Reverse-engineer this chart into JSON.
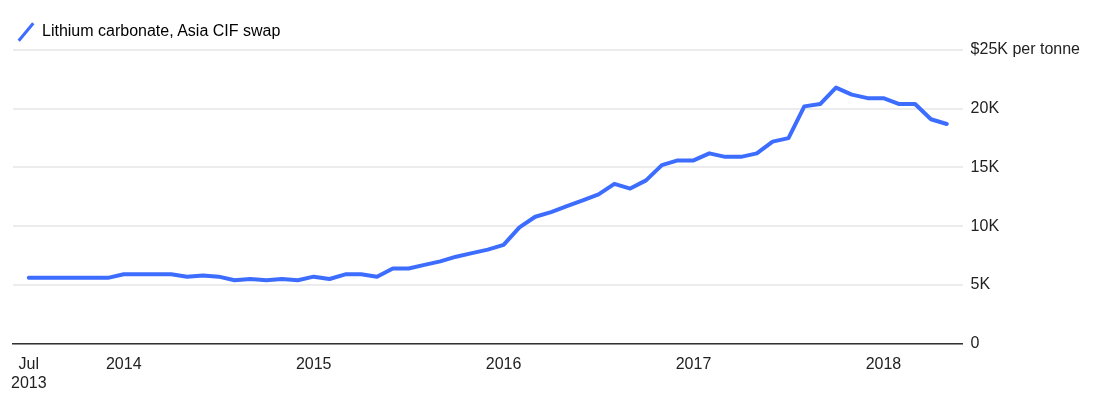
{
  "chart_data": {
    "type": "line",
    "x": [
      "2013-07",
      "2013-08",
      "2013-09",
      "2013-10",
      "2013-11",
      "2013-12",
      "2014-01",
      "2014-02",
      "2014-03",
      "2014-04",
      "2014-05",
      "2014-06",
      "2014-07",
      "2014-08",
      "2014-09",
      "2014-10",
      "2014-11",
      "2014-12",
      "2015-01",
      "2015-02",
      "2015-03",
      "2015-04",
      "2015-05",
      "2015-06",
      "2015-07",
      "2015-08",
      "2015-09",
      "2015-10",
      "2015-11",
      "2015-12",
      "2016-01",
      "2016-02",
      "2016-03",
      "2016-04",
      "2016-05",
      "2016-06",
      "2016-07",
      "2016-08",
      "2016-09",
      "2016-10",
      "2016-11",
      "2016-12",
      "2017-01",
      "2017-02",
      "2017-03",
      "2017-04",
      "2017-05",
      "2017-06",
      "2017-07",
      "2017-08",
      "2017-09",
      "2017-10",
      "2017-11",
      "2017-12",
      "2018-01",
      "2018-02",
      "2018-03",
      "2018-04",
      "2018-05"
    ],
    "series": [
      {
        "name": "Lithium carbonate, Asia CIF swap",
        "color": "#3d6dff",
        "values": [
          5600,
          5600,
          5600,
          5600,
          5600,
          5600,
          5900,
          5900,
          5900,
          5900,
          5700,
          5800,
          5700,
          5400,
          5500,
          5400,
          5500,
          5400,
          5700,
          5500,
          5900,
          5900,
          5700,
          6400,
          6400,
          6700,
          7000,
          7400,
          7700,
          8000,
          8400,
          9900,
          10800,
          11200,
          11700,
          12200,
          12700,
          13600,
          13200,
          13900,
          15200,
          15600,
          15600,
          16200,
          15900,
          15900,
          16200,
          17200,
          17500,
          20200,
          20400,
          21800,
          21200,
          20900,
          20900,
          20400,
          20400,
          19100,
          18700
        ]
      }
    ],
    "xlim": [
      "2013-06",
      "2018-06"
    ],
    "xticks": [
      {
        "value": "2013-07",
        "label": "Jul 2013"
      },
      {
        "value": "2014-01",
        "label": "2014"
      },
      {
        "value": "2015-01",
        "label": "2015"
      },
      {
        "value": "2016-01",
        "label": "2016"
      },
      {
        "value": "2017-01",
        "label": "2017"
      },
      {
        "value": "2018-01",
        "label": "2018"
      }
    ],
    "ylim": [
      0,
      25000
    ],
    "yticks": [
      {
        "value": 0,
        "label": "0"
      },
      {
        "value": 5000,
        "label": "5K"
      },
      {
        "value": 10000,
        "label": "10K"
      },
      {
        "value": 15000,
        "label": "15K"
      },
      {
        "value": 20000,
        "label": "20K"
      },
      {
        "value": 25000,
        "label": "$25K per tonne"
      }
    ],
    "grid": "y",
    "legend": "top left",
    "marker": "none",
    "line_style": "solid"
  }
}
